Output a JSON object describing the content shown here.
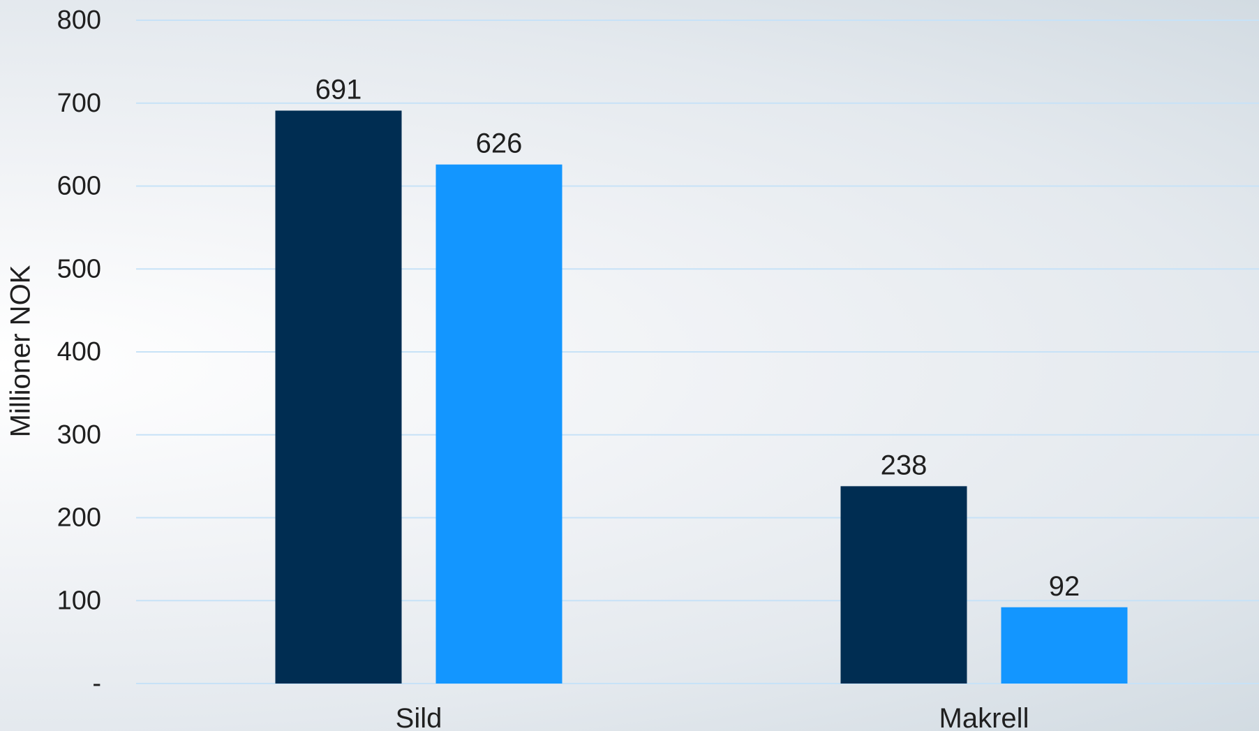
{
  "chart_data": {
    "type": "bar",
    "categories": [
      "Sild",
      "Makrell"
    ],
    "series": [
      {
        "values": [
          691,
          238
        ],
        "color": "#002d52"
      },
      {
        "values": [
          626,
          92
        ],
        "color": "#1396ff"
      }
    ],
    "data_labels": [
      [
        "691",
        "238"
      ],
      [
        "626",
        "92"
      ]
    ],
    "title": "",
    "xlabel": "",
    "ylabel": "Millioner NOK",
    "ylim": [
      0,
      800
    ],
    "yticks": [
      {
        "value": 0,
        "label": "-"
      },
      {
        "value": 100,
        "label": "100"
      },
      {
        "value": 200,
        "label": "200"
      },
      {
        "value": 300,
        "label": "300"
      },
      {
        "value": 400,
        "label": "400"
      },
      {
        "value": 500,
        "label": "500"
      },
      {
        "value": 600,
        "label": "600"
      },
      {
        "value": 700,
        "label": "700"
      },
      {
        "value": 800,
        "label": "800"
      }
    ],
    "grid": true,
    "legend": "none",
    "gridline_color": "#c7e2f7"
  }
}
